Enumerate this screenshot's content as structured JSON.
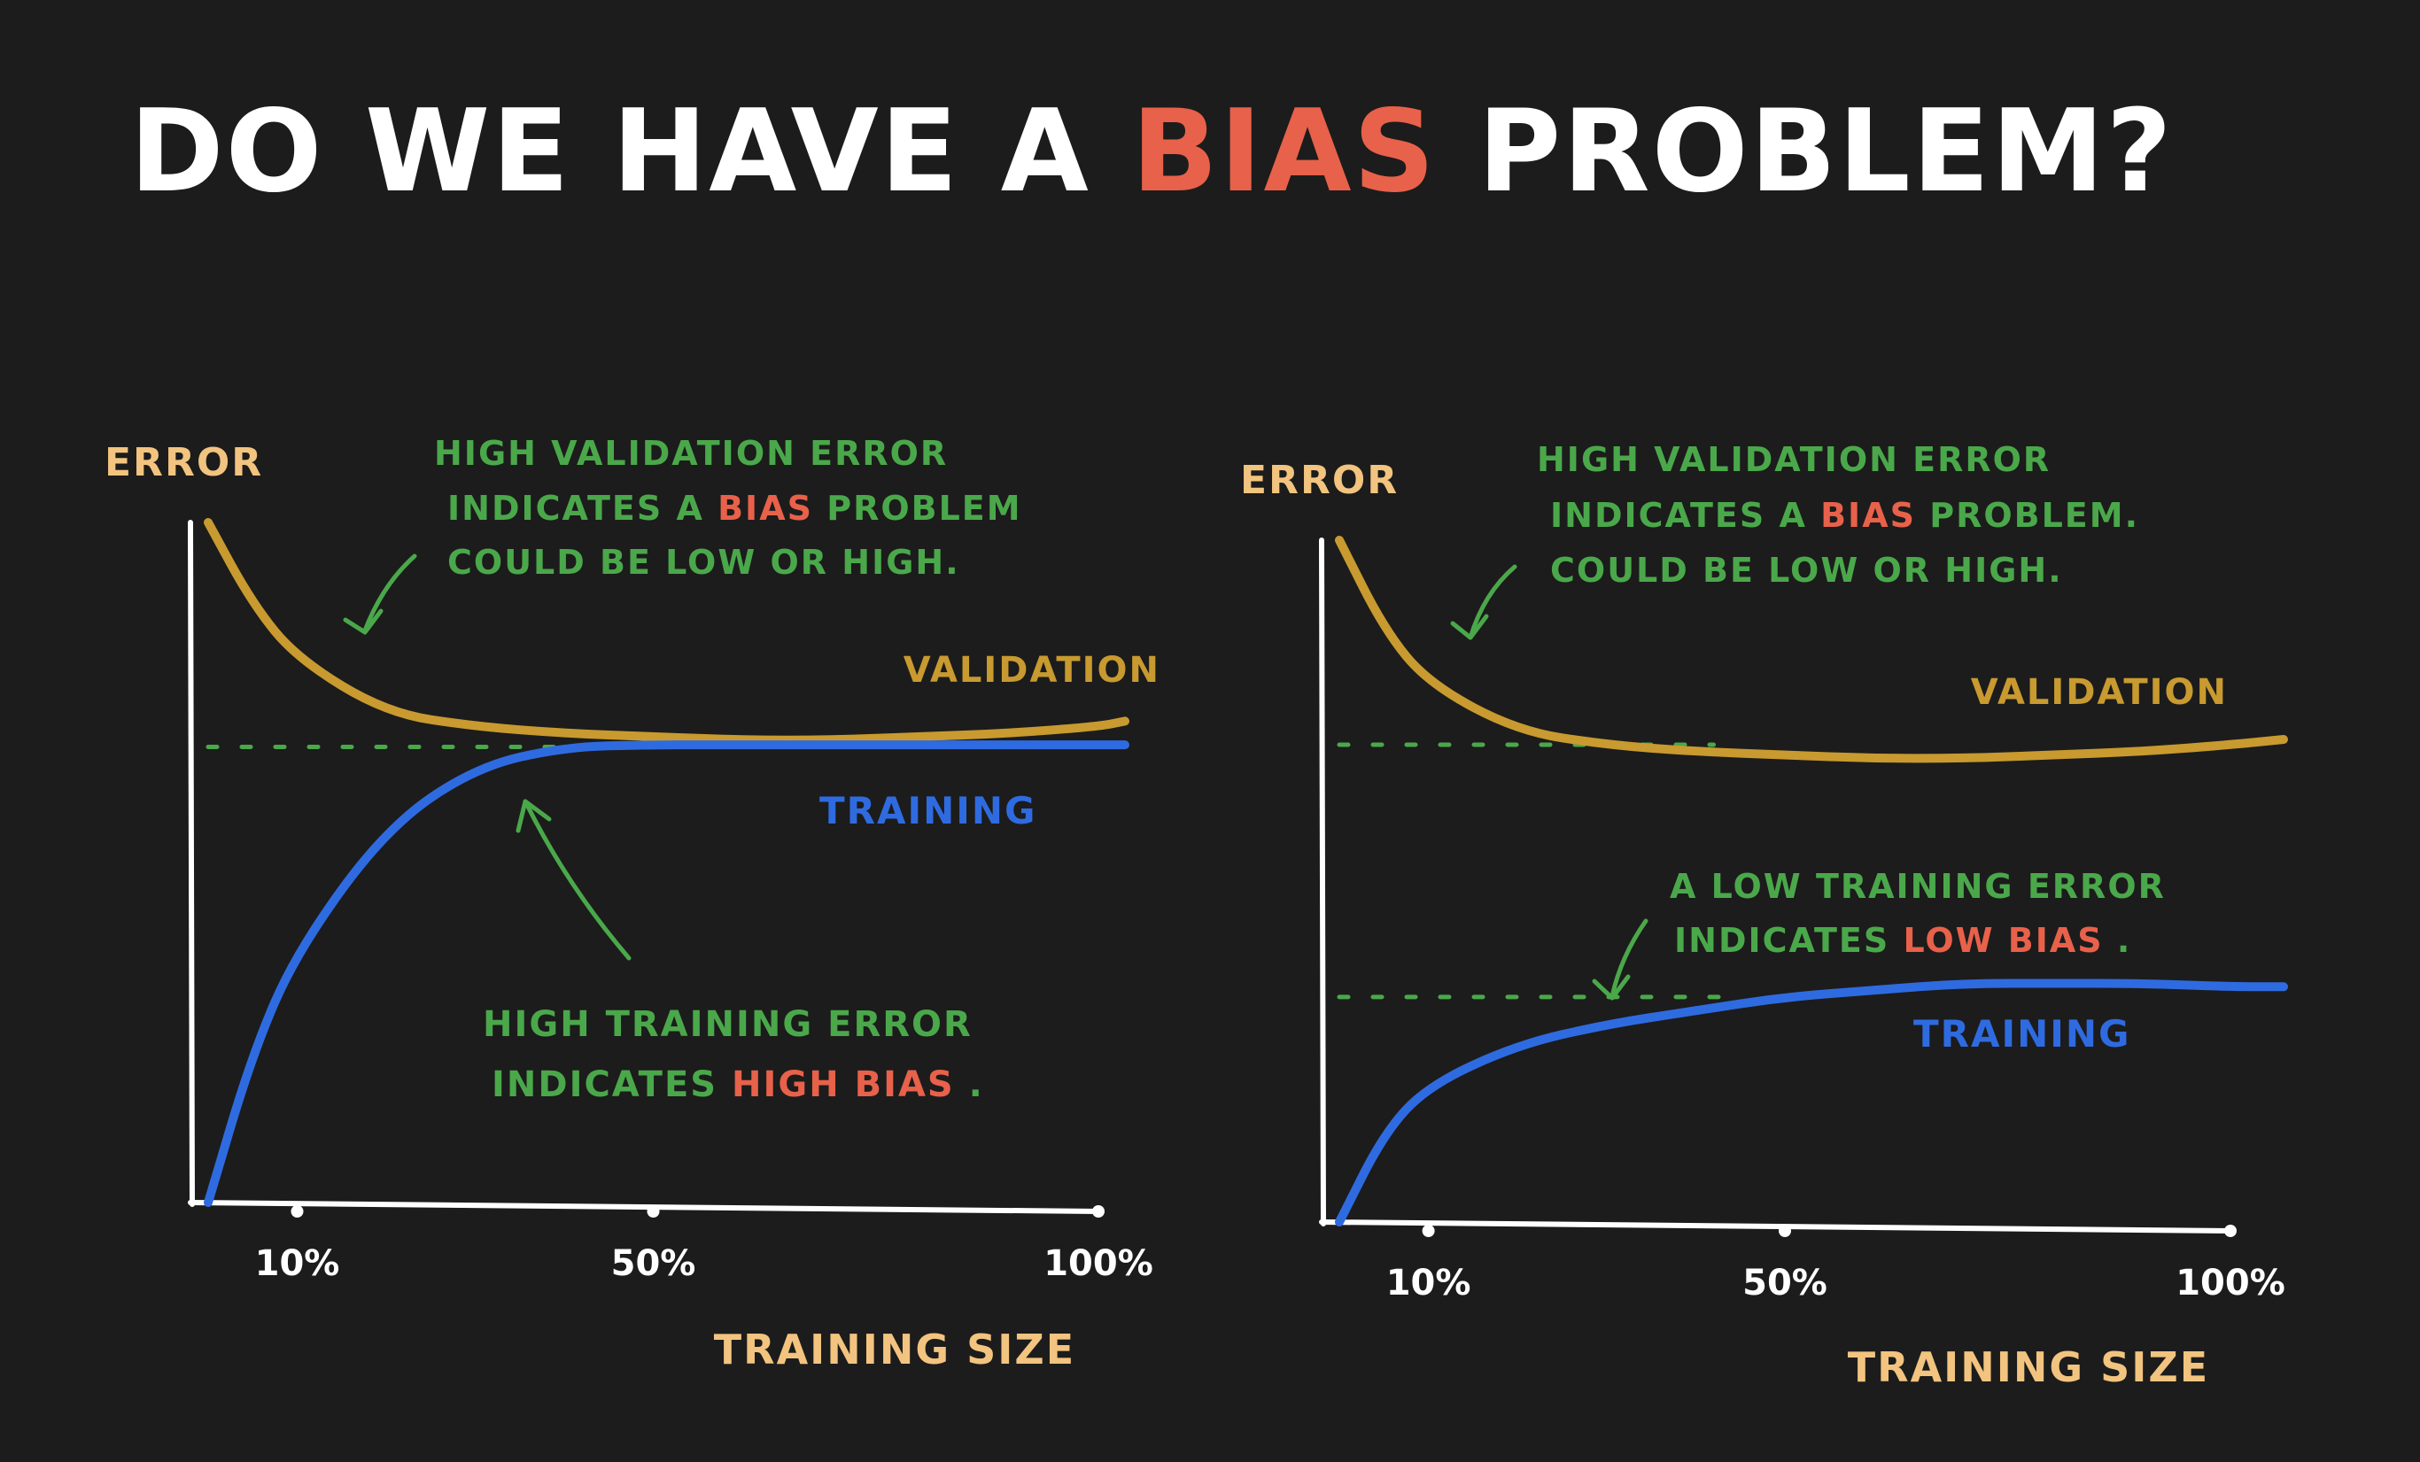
{
  "title": {
    "before": "DO WE HAVE A ",
    "highlight": "BIAS",
    "after": " PROBLEM?"
  },
  "colors": {
    "background": "#1c1c1c",
    "title": "#ffffff",
    "highlight": "#e8614a",
    "axis": "#ffffff",
    "axis_text": "#f2c47f",
    "validation": "#c89a2f",
    "training": "#2f6be0",
    "annotation": "#4aa84a"
  },
  "chart_data": [
    {
      "type": "line",
      "ylabel": "ERROR",
      "xlabel": "TRAINING SIZE",
      "xlim": [
        0,
        100
      ],
      "ylim": [
        0,
        100
      ],
      "x_ticks": [
        {
          "value": 10,
          "label": "10%"
        },
        {
          "value": 50,
          "label": "50%"
        },
        {
          "value": 100,
          "label": "100%"
        }
      ],
      "reference_level": 67,
      "series": [
        {
          "name": "VALIDATION",
          "x": [
            0,
            5,
            10,
            20,
            30,
            40,
            50,
            60,
            70,
            80,
            90,
            100
          ],
          "values": [
            100,
            88,
            80,
            72,
            70,
            69,
            68.5,
            68,
            68,
            68.5,
            69,
            70
          ]
        },
        {
          "name": "TRAINING",
          "x": [
            0,
            5,
            10,
            20,
            30,
            40,
            50,
            60,
            70,
            80,
            90,
            100
          ],
          "values": [
            0,
            22,
            37,
            55,
            64,
            67,
            67.3,
            67.3,
            67.3,
            67.3,
            67.3,
            67.3
          ]
        }
      ],
      "annotations": {
        "validation": {
          "lines": [
            "HIGH VALIDATION ERROR",
            "INDICATES A ",
            "COULD BE LOW OR HIGH."
          ],
          "highlight": "BIAS",
          "after_highlight": " PROBLEM"
        },
        "training": {
          "lines": [
            "HIGH TRAINING ERROR",
            "INDICATES "
          ],
          "highlight": "HIGH BIAS",
          "after_highlight": "."
        }
      }
    },
    {
      "type": "line",
      "ylabel": "ERROR",
      "xlabel": "TRAINING SIZE",
      "xlim": [
        0,
        100
      ],
      "ylim": [
        0,
        100
      ],
      "x_ticks": [
        {
          "value": 10,
          "label": "10%"
        },
        {
          "value": 50,
          "label": "50%"
        },
        {
          "value": 100,
          "label": "100%"
        }
      ],
      "reference_levels": [
        70,
        33
      ],
      "series": [
        {
          "name": "VALIDATION",
          "x": [
            0,
            5,
            10,
            20,
            30,
            40,
            50,
            60,
            70,
            80,
            90,
            100
          ],
          "values": [
            100,
            87,
            79,
            72,
            70,
            69,
            68.5,
            68,
            68,
            68.5,
            69,
            70
          ]
        },
        {
          "name": "TRAINING",
          "x": [
            0,
            5,
            10,
            20,
            30,
            40,
            50,
            60,
            70,
            80,
            90,
            100
          ],
          "values": [
            0,
            13,
            20,
            26,
            29,
            31,
            33,
            34,
            35,
            35,
            35,
            34.5
          ]
        }
      ],
      "annotations": {
        "validation": {
          "lines": [
            "HIGH VALIDATION ERROR",
            "INDICATES A ",
            "COULD BE LOW OR HIGH."
          ],
          "highlight": "BIAS",
          "after_highlight": " PROBLEM."
        },
        "training": {
          "lines": [
            "A LOW TRAINING ERROR",
            "INDICATES "
          ],
          "highlight": "LOW BIAS",
          "after_highlight": "."
        }
      }
    }
  ]
}
